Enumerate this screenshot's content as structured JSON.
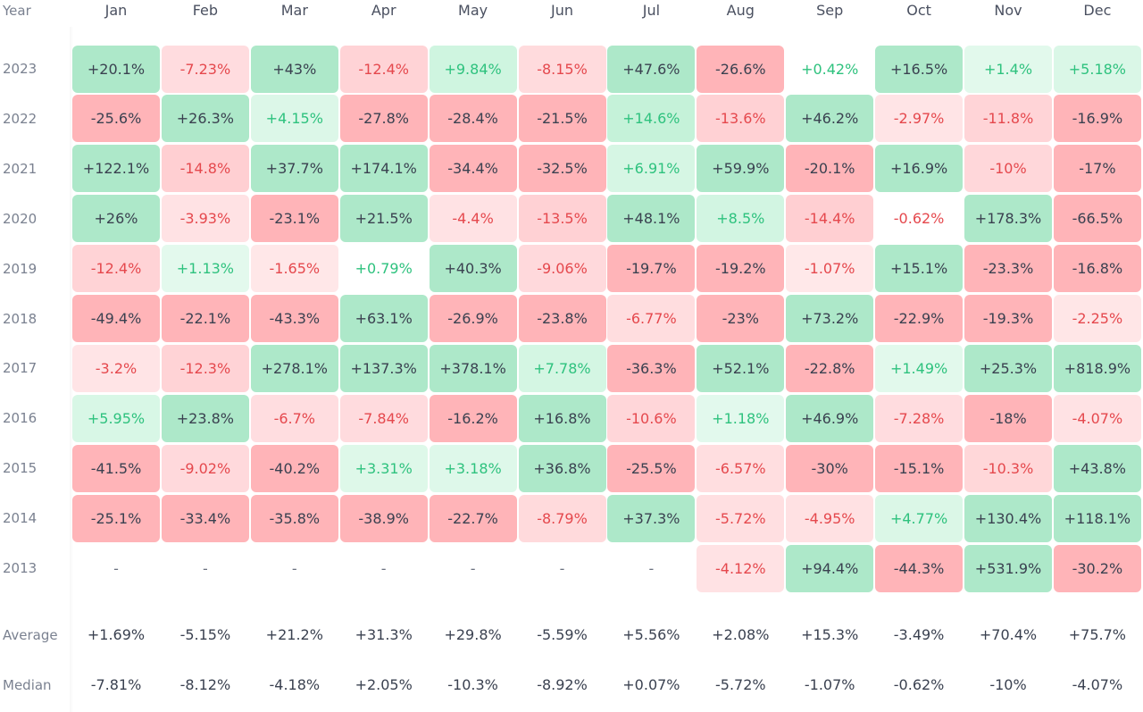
{
  "chart_data": {
    "type": "heatmap",
    "corner_label": "Year",
    "columns": [
      "Jan",
      "Feb",
      "Mar",
      "Apr",
      "May",
      "Jun",
      "Jul",
      "Aug",
      "Sep",
      "Oct",
      "Nov",
      "Dec"
    ],
    "rows": [
      {
        "year": "2023",
        "values": [
          "+20.1%",
          "-7.23%",
          "+43%",
          "-12.4%",
          "+9.84%",
          "-8.15%",
          "+47.6%",
          "-26.6%",
          "+0.42%",
          "+16.5%",
          "+1.4%",
          "+5.18%"
        ]
      },
      {
        "year": "2022",
        "values": [
          "-25.6%",
          "+26.3%",
          "+4.15%",
          "-27.8%",
          "-28.4%",
          "-21.5%",
          "+14.6%",
          "-13.6%",
          "+46.2%",
          "-2.97%",
          "-11.8%",
          "-16.9%"
        ]
      },
      {
        "year": "2021",
        "values": [
          "+122.1%",
          "-14.8%",
          "+37.7%",
          "+174.1%",
          "-34.4%",
          "-32.5%",
          "+6.91%",
          "+59.9%",
          "-20.1%",
          "+16.9%",
          "-10%",
          "-17%"
        ]
      },
      {
        "year": "2020",
        "values": [
          "+26%",
          "-3.93%",
          "-23.1%",
          "+21.5%",
          "-4.4%",
          "-13.5%",
          "+48.1%",
          "+8.5%",
          "-14.4%",
          "-0.62%",
          "+178.3%",
          "-66.5%"
        ]
      },
      {
        "year": "2019",
        "values": [
          "-12.4%",
          "+1.13%",
          "-1.65%",
          "+0.79%",
          "+40.3%",
          "-9.06%",
          "-19.7%",
          "-19.2%",
          "-1.07%",
          "+15.1%",
          "-23.3%",
          "-16.8%"
        ]
      },
      {
        "year": "2018",
        "values": [
          "-49.4%",
          "-22.1%",
          "-43.3%",
          "+63.1%",
          "-26.9%",
          "-23.8%",
          "-6.77%",
          "-23%",
          "+73.2%",
          "-22.9%",
          "-19.3%",
          "-2.25%"
        ]
      },
      {
        "year": "2017",
        "values": [
          "-3.2%",
          "-12.3%",
          "+278.1%",
          "+137.3%",
          "+378.1%",
          "+7.78%",
          "-36.3%",
          "+52.1%",
          "-22.8%",
          "+1.49%",
          "+25.3%",
          "+818.9%"
        ]
      },
      {
        "year": "2016",
        "values": [
          "+5.95%",
          "+23.8%",
          "-6.7%",
          "-7.84%",
          "-16.2%",
          "+16.8%",
          "-10.6%",
          "+1.18%",
          "+46.9%",
          "-7.28%",
          "-18%",
          "-4.07%"
        ]
      },
      {
        "year": "2015",
        "values": [
          "-41.5%",
          "-9.02%",
          "-40.2%",
          "+3.31%",
          "+3.18%",
          "+36.8%",
          "-25.5%",
          "-6.57%",
          "-30%",
          "-15.1%",
          "-10.3%",
          "+43.8%"
        ]
      },
      {
        "year": "2014",
        "values": [
          "-25.1%",
          "-33.4%",
          "-35.8%",
          "-38.9%",
          "-22.7%",
          "-8.79%",
          "+37.3%",
          "-5.72%",
          "-4.95%",
          "+4.77%",
          "+130.4%",
          "+118.1%"
        ]
      },
      {
        "year": "2013",
        "values": [
          "-",
          "-",
          "-",
          "-",
          "-",
          "-",
          "-",
          "-4.12%",
          "+94.4%",
          "-44.3%",
          "+531.9%",
          "-30.2%"
        ]
      }
    ],
    "summary": [
      {
        "label": "Average",
        "values": [
          "+1.69%",
          "-5.15%",
          "+21.2%",
          "+31.3%",
          "+29.8%",
          "-5.59%",
          "+5.56%",
          "+2.08%",
          "+15.3%",
          "-3.49%",
          "+70.4%",
          "+75.7%"
        ]
      },
      {
        "label": "Median",
        "values": [
          "-7.81%",
          "-8.12%",
          "-4.18%",
          "+2.05%",
          "-10.3%",
          "-8.92%",
          "+0.07%",
          "-5.72%",
          "-1.07%",
          "-0.62%",
          "-10%",
          "-4.07%"
        ]
      }
    ],
    "colors": {
      "strong_green": "#ade8c9",
      "strong_red": "#ffb4b8",
      "positive_text": "#2ec27e",
      "negative_text": "#e5484d",
      "neutral_text": "#3a4150"
    }
  }
}
